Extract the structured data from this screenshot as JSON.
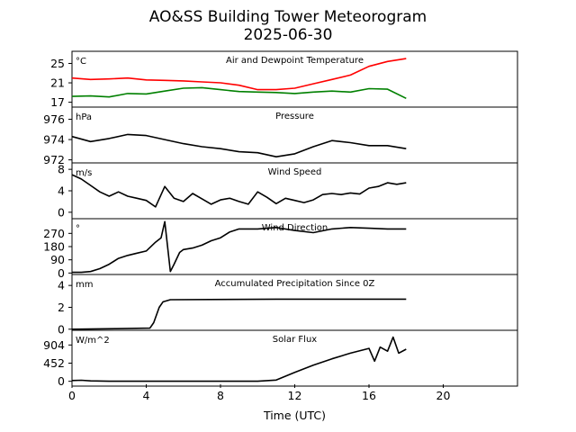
{
  "figure": {
    "title_line1": "AO&SS Building Tower Meteorogram",
    "title_line2": "2025-06-30",
    "xlabel": "Time (UTC)"
  },
  "chart_data": {
    "type": "line",
    "title": "AO&SS Building Tower Meteorogram",
    "subtitle": "2025-06-30",
    "xlabel": "Time (UTC)",
    "xlim": [
      0,
      24
    ],
    "x_ticks": [
      "0",
      "4",
      "8",
      "12",
      "16",
      "20"
    ],
    "grid": false,
    "panels": [
      {
        "title": "Air and Dewpoint Temperature",
        "unit": "°C",
        "ylim": [
          16,
          27.5
        ],
        "y_ticks": [
          17,
          21,
          25
        ],
        "series": [
          {
            "color": "#ff0000",
            "x": [
              0,
              1,
              2,
              3,
              4,
              5,
              6,
              7,
              8,
              9,
              10,
              11,
              12,
              13,
              14,
              15,
              16,
              17,
              18
            ],
            "y": [
              22.0,
              21.7,
              21.8,
              22.0,
              21.6,
              21.5,
              21.4,
              21.2,
              21.0,
              20.5,
              19.6,
              19.6,
              19.9,
              20.8,
              21.7,
              22.6,
              24.4,
              25.4,
              26.0
            ]
          },
          {
            "color": "#008000",
            "x": [
              0,
              1,
              2,
              3,
              4,
              5,
              6,
              7,
              8,
              9,
              10,
              11,
              12,
              13,
              14,
              15,
              16,
              17,
              18
            ],
            "y": [
              18.2,
              18.3,
              18.1,
              18.8,
              18.7,
              19.3,
              19.9,
              20.0,
              19.6,
              19.2,
              19.1,
              19.0,
              18.8,
              19.1,
              19.3,
              19.1,
              19.8,
              19.7,
              17.8
            ]
          }
        ]
      },
      {
        "title": "Pressure",
        "unit": "hPa",
        "ylim": [
          971.7,
          977.2
        ],
        "y_ticks": [
          972,
          974,
          976
        ],
        "series": [
          {
            "color": "#000000",
            "x": [
              0,
              1,
              2,
              3,
              4,
              5,
              6,
              7,
              8,
              9,
              10,
              11,
              12,
              13,
              14,
              15,
              16,
              17,
              18
            ],
            "y": [
              974.3,
              973.8,
              974.1,
              974.5,
              974.4,
              974.0,
              973.6,
              973.3,
              973.1,
              972.8,
              972.7,
              972.3,
              972.6,
              973.3,
              973.9,
              973.7,
              973.4,
              973.4,
              973.1
            ]
          }
        ]
      },
      {
        "title": "Wind Speed",
        "unit": "m/s",
        "ylim": [
          -1.2,
          9.2
        ],
        "y_ticks": [
          0,
          4,
          8
        ],
        "series": [
          {
            "color": "#000000",
            "x": [
              0,
              0.5,
              1,
              1.5,
              2,
              2.5,
              3,
              3.5,
              4,
              4.5,
              5,
              5.5,
              6,
              6.5,
              7,
              7.5,
              8,
              8.5,
              9,
              9.5,
              10,
              10.5,
              11,
              11.5,
              12,
              12.5,
              13,
              13.5,
              14,
              14.5,
              15,
              15.5,
              16,
              16.5,
              17,
              17.5,
              18
            ],
            "y": [
              7.0,
              6.2,
              5.0,
              3.8,
              3.0,
              3.8,
              3.0,
              2.6,
              2.2,
              1.0,
              4.8,
              2.6,
              2.0,
              3.5,
              2.5,
              1.5,
              2.3,
              2.6,
              2.0,
              1.5,
              3.8,
              2.8,
              1.6,
              2.6,
              2.2,
              1.8,
              2.3,
              3.3,
              3.5,
              3.3,
              3.6,
              3.4,
              4.5,
              4.8,
              5.5,
              5.2,
              5.5
            ]
          }
        ]
      },
      {
        "title": "Wind Direction",
        "unit": "°",
        "ylim": [
          -10,
          370
        ],
        "y_ticks": [
          0,
          90,
          180,
          270
        ],
        "series": [
          {
            "color": "#000000",
            "x": [
              0,
              0.5,
              1,
              1.5,
              2,
              2.5,
              3,
              3.5,
              4,
              4.5,
              4.8,
              5,
              5.3,
              5.5,
              5.8,
              6,
              6.5,
              7,
              7.5,
              8,
              8.5,
              9,
              10,
              11,
              12,
              13,
              14,
              15,
              16,
              17,
              18
            ],
            "y": [
              5,
              5,
              10,
              30,
              60,
              100,
              120,
              135,
              150,
              210,
              240,
              350,
              10,
              60,
              140,
              160,
              170,
              190,
              220,
              240,
              280,
              300,
              300,
              310,
              290,
              275,
              300,
              310,
              305,
              300,
              300
            ]
          }
        ]
      },
      {
        "title": "Accumulated Precipitation Since 0Z",
        "unit": "mm",
        "ylim": [
          -0.1,
          5.0
        ],
        "y_ticks": [
          0,
          2,
          4
        ],
        "series": [
          {
            "color": "#000000",
            "x": [
              0,
              2.4,
              4.2,
              4.4,
              4.7,
              4.9,
              5.3,
              11,
              18
            ],
            "y": [
              0,
              0.05,
              0.1,
              0.6,
              2.0,
              2.5,
              2.7,
              2.75,
              2.75
            ]
          }
        ]
      },
      {
        "title": "Solar Flux",
        "unit": "W/m^2",
        "ylim": [
          -120,
          1270
        ],
        "y_ticks": [
          0,
          452,
          904
        ],
        "series": [
          {
            "color": "#000000",
            "x": [
              0,
              0.5,
              1,
              2,
              4,
              6,
              8,
              10,
              11,
              12,
              13,
              14,
              15,
              16,
              16.3,
              16.6,
              17,
              17.3,
              17.6,
              18
            ],
            "y": [
              20,
              25,
              10,
              0,
              0,
              0,
              0,
              0,
              30,
              220,
              400,
              560,
              700,
              820,
              500,
              850,
              750,
              1100,
              700,
              800
            ]
          }
        ]
      }
    ]
  }
}
